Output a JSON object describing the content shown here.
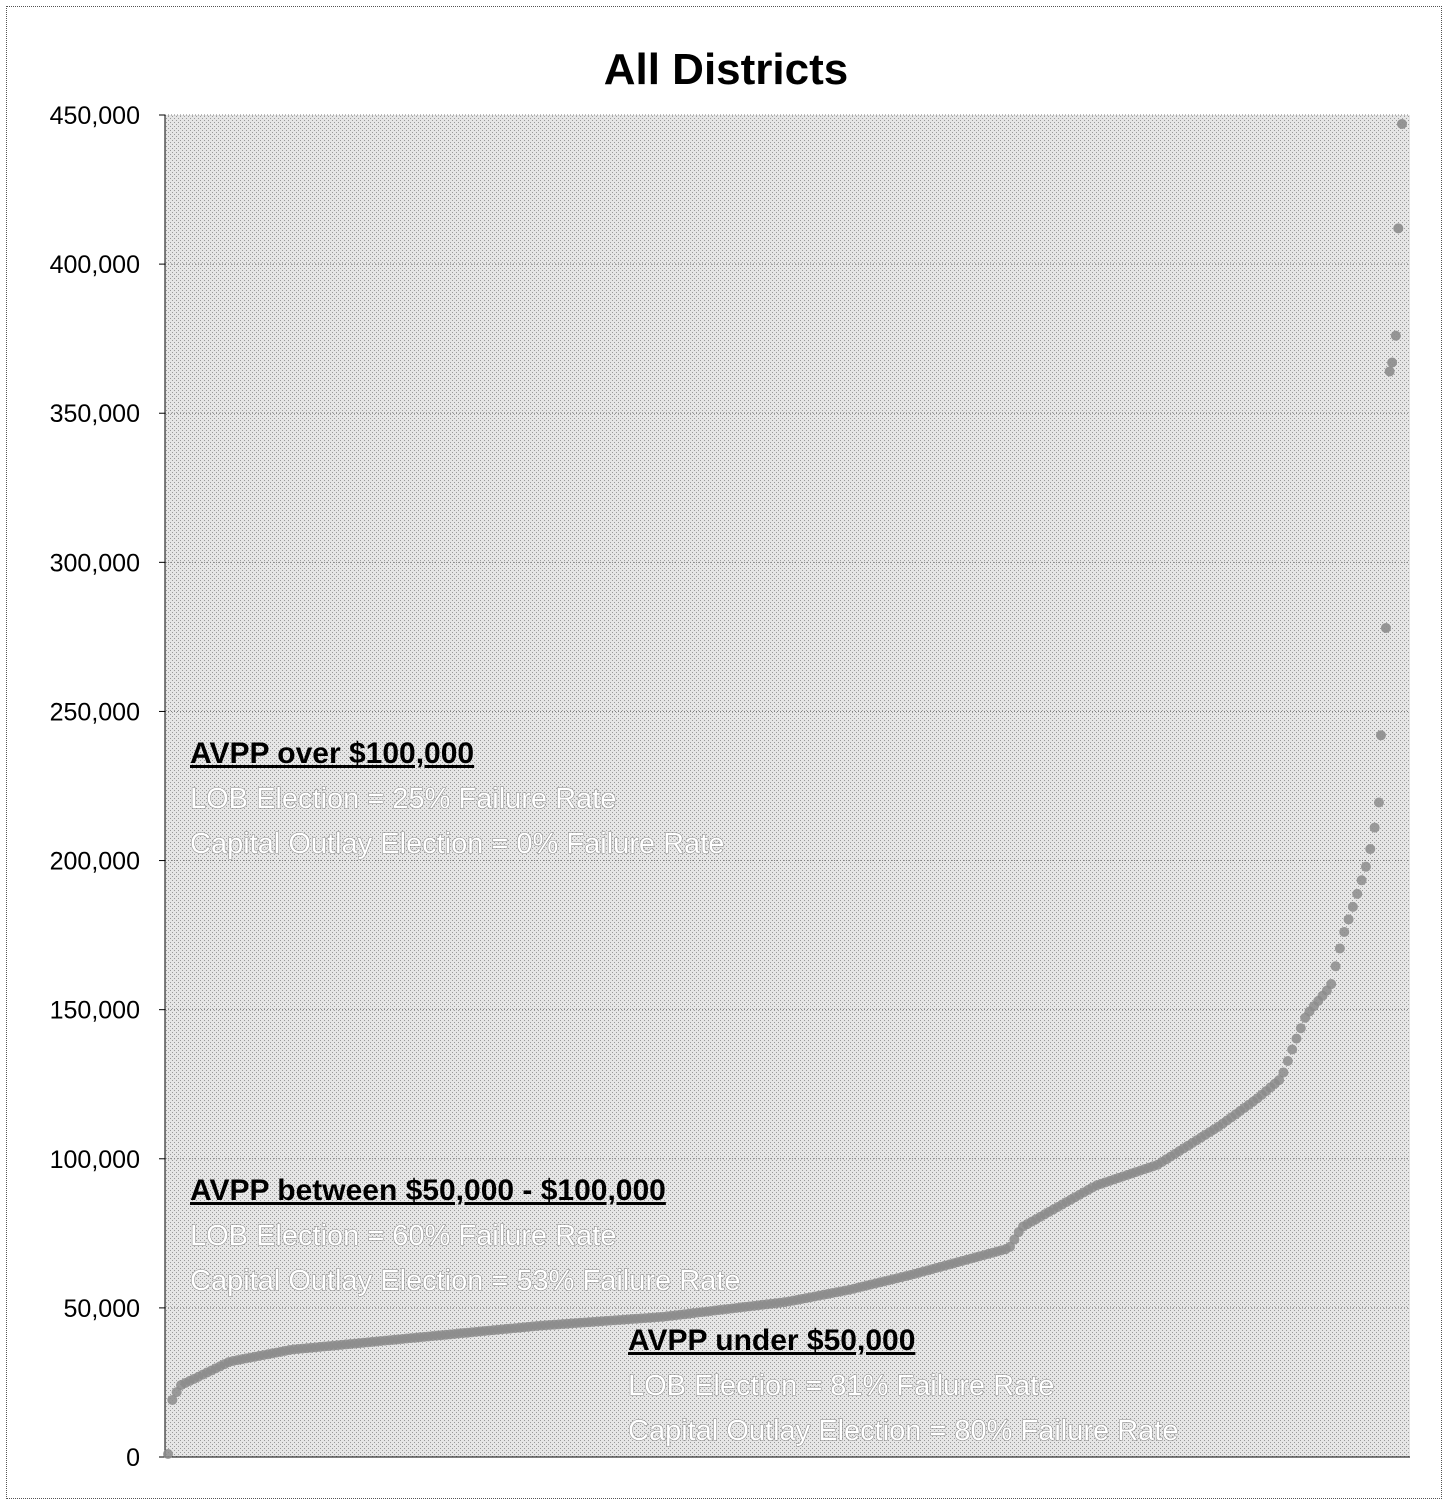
{
  "chart_data": {
    "type": "scatter",
    "title": "All Districts",
    "xlabel": "",
    "ylabel": "",
    "ylim": [
      0,
      450000
    ],
    "yticks": [
      "0",
      "50,000",
      "100,000",
      "150,000",
      "200,000",
      "250,000",
      "300,000",
      "350,000",
      "400,000",
      "450,000"
    ],
    "ytick_values": [
      0,
      50000,
      100000,
      150000,
      200000,
      250000,
      300000,
      350000,
      400000,
      450000
    ],
    "grid": true,
    "legend": "none",
    "colors": {
      "plot_background": "#d9d9d9",
      "points": "#8c8c8c",
      "gridline": "#7f7f7f"
    },
    "curve_anchors": {
      "description_free": true,
      "x_rank_fraction": [
        0.0,
        0.002,
        0.01,
        0.05,
        0.1,
        0.2,
        0.3,
        0.4,
        0.5,
        0.55,
        0.6,
        0.68,
        0.69,
        0.75,
        0.8,
        0.85,
        0.88,
        0.9,
        0.91,
        0.92,
        0.94,
        0.95,
        0.96,
        0.97,
        0.975,
        0.98,
        0.985,
        0.99,
        1.0
      ],
      "y_values": [
        1000,
        18000,
        24000,
        32000,
        36000,
        40000,
        44000,
        47000,
        52000,
        56000,
        61000,
        70000,
        77000,
        91000,
        98000,
        111000,
        120000,
        127000,
        138000,
        148000,
        158000,
        175000,
        187000,
        200000,
        210000,
        222000,
        235000,
        245000,
        260000
      ]
    },
    "outliers": [
      {
        "rank_fraction": 0.983,
        "y": 242000
      },
      {
        "rank_fraction": 0.987,
        "y": 278000
      },
      {
        "rank_fraction": 0.99,
        "y": 364000
      },
      {
        "rank_fraction": 0.992,
        "y": 367000
      },
      {
        "rank_fraction": 0.995,
        "y": 376000
      },
      {
        "rank_fraction": 0.997,
        "y": 412000
      },
      {
        "rank_fraction": 1.0,
        "y": 447000
      }
    ],
    "n_points": 286,
    "annotations": [
      {
        "heading": "AVPP over $100,000",
        "lines": [
          "LOB Election = 25% Failure Rate",
          "Capital Outlay Election = 0% Failure Rate"
        ]
      },
      {
        "heading": "AVPP between $50,000 - $100,000",
        "lines": [
          "LOB Election = 60% Failure Rate",
          "Capital Outlay Election =  53% Failure Rate"
        ]
      },
      {
        "heading": "AVPP under $50,000",
        "lines": [
          "LOB Election = 81% Failure Rate",
          "Capital Outlay Election = 80% Failure Rate"
        ]
      }
    ]
  }
}
